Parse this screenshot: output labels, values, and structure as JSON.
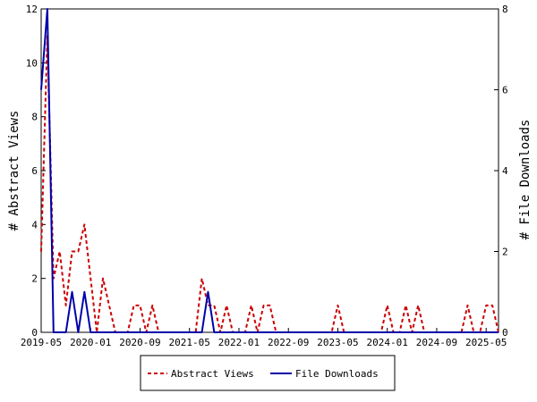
{
  "chart_data": {
    "type": "line",
    "x_tick_labels": [
      "2019-05",
      "2020-01",
      "2020-09",
      "2021-05",
      "2022-01",
      "2022-09",
      "2023-05",
      "2024-01",
      "2024-09",
      "2025-05"
    ],
    "x_range": [
      "2019-05",
      "2025-07"
    ],
    "left_axis": {
      "label": "# Abstract Views",
      "range": [
        0,
        12
      ],
      "ticks": [
        0,
        2,
        4,
        6,
        8,
        10,
        12
      ]
    },
    "right_axis": {
      "label": "# File Downloads",
      "range": [
        0,
        8
      ],
      "ticks": [
        0,
        2,
        4,
        6,
        8
      ]
    },
    "grid": false,
    "legend_position": "bottom-center",
    "series": [
      {
        "name": "Abstract Views",
        "axis": "left",
        "color": "#cc0000",
        "style": "dashed",
        "x": [
          "2019-05",
          "2019-06",
          "2019-07",
          "2019-08",
          "2019-09",
          "2019-10",
          "2019-11",
          "2019-12",
          "2020-01",
          "2020-02",
          "2020-03",
          "2020-04",
          "2020-05",
          "2020-06",
          "2020-07",
          "2020-08",
          "2020-09",
          "2020-10",
          "2020-11",
          "2020-12",
          "2021-01",
          "2021-02",
          "2021-03",
          "2021-04",
          "2021-05",
          "2021-06",
          "2021-07",
          "2021-08",
          "2021-09",
          "2021-10",
          "2021-11",
          "2021-12",
          "2022-01",
          "2022-02",
          "2022-03",
          "2022-04",
          "2022-05",
          "2022-06",
          "2022-07",
          "2022-08",
          "2022-09",
          "2022-10",
          "2022-11",
          "2022-12",
          "2023-01",
          "2023-02",
          "2023-03",
          "2023-04",
          "2023-05",
          "2023-06",
          "2023-07",
          "2023-08",
          "2023-09",
          "2023-10",
          "2023-11",
          "2023-12",
          "2024-01",
          "2024-02",
          "2024-03",
          "2024-04",
          "2024-05",
          "2024-06",
          "2024-07",
          "2024-08",
          "2024-09",
          "2024-10",
          "2024-11",
          "2024-12",
          "2025-01",
          "2025-02",
          "2025-03",
          "2025-04",
          "2025-05",
          "2025-06",
          "2025-07"
        ],
        "values": [
          3,
          11,
          2,
          3,
          1,
          3,
          3,
          4,
          2,
          0,
          2,
          1,
          0,
          0,
          0,
          1,
          1,
          0,
          1,
          0,
          0,
          0,
          0,
          0,
          0,
          0,
          2,
          1,
          1,
          0,
          1,
          0,
          0,
          0,
          1,
          0,
          1,
          1,
          0,
          0,
          0,
          0,
          0,
          0,
          0,
          0,
          0,
          0,
          1,
          0,
          0,
          0,
          0,
          0,
          0,
          0,
          1,
          0,
          0,
          1,
          0,
          1,
          0,
          0,
          0,
          0,
          0,
          0,
          0,
          1,
          0,
          0,
          1,
          1,
          0
        ]
      },
      {
        "name": "File Downloads",
        "axis": "right",
        "color": "#0000aa",
        "style": "solid",
        "x": [
          "2019-05",
          "2019-06",
          "2019-07",
          "2019-08",
          "2019-09",
          "2019-10",
          "2019-11",
          "2019-12",
          "2020-01",
          "2020-02",
          "2020-03",
          "2020-04",
          "2020-05",
          "2020-06",
          "2020-07",
          "2020-08",
          "2020-09",
          "2020-10",
          "2020-11",
          "2020-12",
          "2021-01",
          "2021-02",
          "2021-03",
          "2021-04",
          "2021-05",
          "2021-06",
          "2021-07",
          "2021-08",
          "2021-09",
          "2021-10",
          "2021-11",
          "2021-12",
          "2022-01",
          "2022-02",
          "2022-03",
          "2022-04",
          "2022-05",
          "2022-06",
          "2022-07",
          "2022-08",
          "2022-09",
          "2022-10",
          "2022-11",
          "2022-12",
          "2023-01",
          "2023-02",
          "2023-03",
          "2023-04",
          "2023-05",
          "2023-06",
          "2023-07",
          "2023-08",
          "2023-09",
          "2023-10",
          "2023-11",
          "2023-12",
          "2024-01",
          "2024-02",
          "2024-03",
          "2024-04",
          "2024-05",
          "2024-06",
          "2024-07",
          "2024-08",
          "2024-09",
          "2024-10",
          "2024-11",
          "2024-12",
          "2025-01",
          "2025-02",
          "2025-03",
          "2025-04",
          "2025-05",
          "2025-06",
          "2025-07"
        ],
        "values": [
          6,
          8,
          0,
          0,
          0,
          1,
          0,
          1,
          0,
          0,
          0,
          0,
          0,
          0,
          0,
          0,
          0,
          0,
          0,
          0,
          0,
          0,
          0,
          0,
          0,
          0,
          0,
          1,
          0,
          0,
          0,
          0,
          0,
          0,
          0,
          0,
          0,
          0,
          0,
          0,
          0,
          0,
          0,
          0,
          0,
          0,
          0,
          0,
          0,
          0,
          0,
          0,
          0,
          0,
          0,
          0,
          0,
          0,
          0,
          0,
          0,
          0,
          0,
          0,
          0,
          0,
          0,
          0,
          0,
          0,
          0,
          0,
          0,
          0,
          0
        ]
      }
    ]
  }
}
